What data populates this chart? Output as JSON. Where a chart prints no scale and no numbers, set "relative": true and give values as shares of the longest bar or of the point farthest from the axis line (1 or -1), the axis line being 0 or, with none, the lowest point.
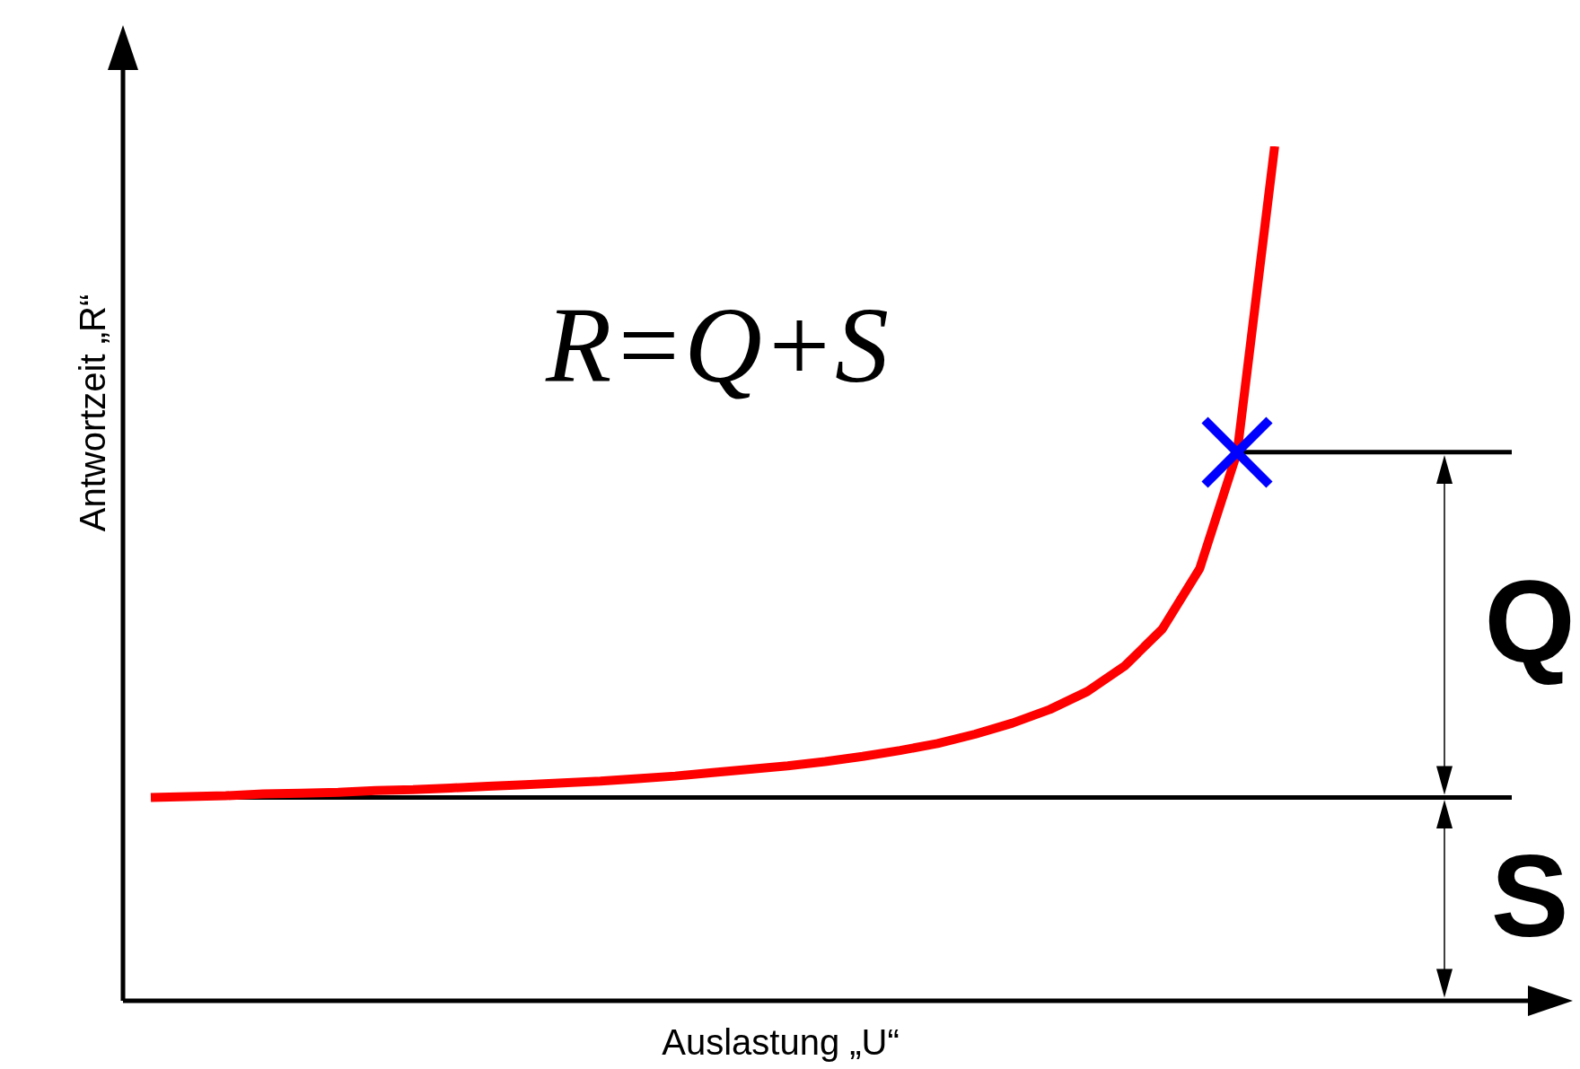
{
  "chart_data": {
    "type": "line",
    "relative": true,
    "xlabel": "Auslastung „U“",
    "ylabel": "Antwortzeit „R“",
    "categories": [
      null,
      null,
      null,
      null,
      null,
      null,
      null,
      null,
      null,
      null,
      null,
      null,
      null,
      null,
      null,
      null,
      null,
      null,
      null,
      null,
      null,
      null,
      null,
      null,
      null,
      null,
      null,
      null,
      null,
      null,
      null,
      null,
      null,
      null,
      null,
      null,
      null,
      null
    ],
    "series": [
      {
        "color": "#ff0000",
        "values": [
          0.238,
          0.239,
          0.24,
          0.242,
          0.243,
          0.244,
          0.246,
          0.247,
          0.249,
          0.251,
          0.253,
          0.255,
          0.257,
          0.26,
          0.263,
          0.267,
          0.271,
          0.275,
          0.28,
          0.286,
          0.293,
          0.301,
          0.312,
          0.325,
          0.341,
          0.362,
          0.392,
          0.435,
          0.506,
          0.642,
          1.0,
          null,
          null,
          null,
          null,
          null,
          null,
          null
        ]
      }
    ],
    "ref_lines": [
      {
        "axis": "y",
        "value": 0.642,
        "color": "#000000"
      },
      {
        "axis": "y",
        "value": 0.238,
        "color": "#000000"
      }
    ],
    "annotations": [
      "R=Q+S",
      "Q",
      "S"
    ],
    "marker": "none",
    "legend": false
  }
}
